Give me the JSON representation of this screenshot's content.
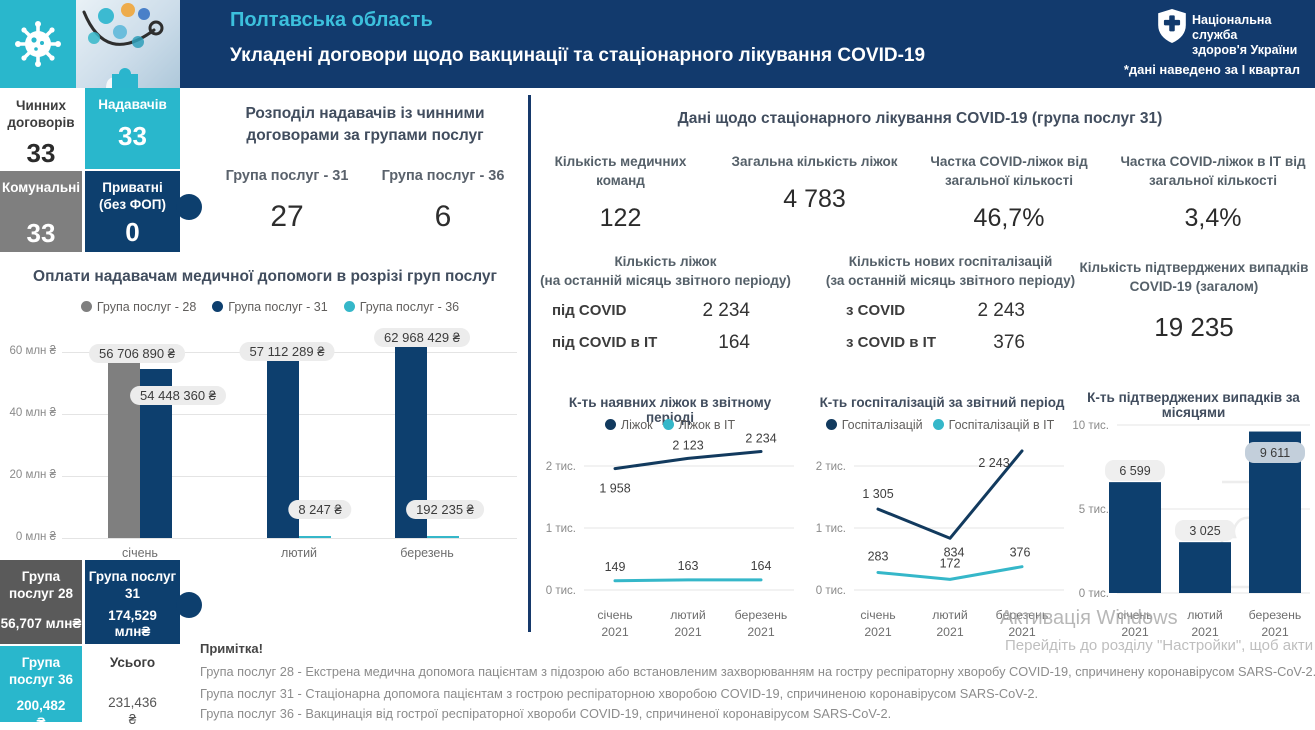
{
  "header": {
    "region": "Полтавська область",
    "subtitle": "Укладені договори щодо вакцинації та стаціонарного лікування COVID-19",
    "org_line1": "Національна служба",
    "org_line2": "здоров'я України",
    "period_note": "*дані наведено за І квартал"
  },
  "colors": {
    "navy": "#123a6d",
    "cyan": "#29b7cc",
    "gray": "#7f7f7f",
    "box_navy": "#0d3f6e",
    "bar_navy": "#0d3f6e",
    "line_navy": "#123a5e",
    "series_cyan": "#35b7c9"
  },
  "summary": {
    "contracts_label": "Чинних договорів",
    "contracts_value": "33",
    "providers_label": "Надавачів",
    "providers_value": "33",
    "municipal_label": "Комунальні",
    "municipal_value": "33",
    "private_label": "Приватні (без ФОП)",
    "private_value": "0"
  },
  "distribution": {
    "title": "Розподіл надавачів із чинними договорами за групами послуг",
    "group31_label": "Група послуг - 31",
    "group31_value": "27",
    "group36_label": "Група послуг - 36",
    "group36_value": "6"
  },
  "totals": {
    "g28_label": "Група послуг 28",
    "g28_value": "56,707 млн₴",
    "g31_label": "Група послуг 31",
    "g31_value": "174,529 млн₴",
    "g36_label": "Група послуг 36",
    "g36_value": "200,482",
    "g36_suffix": "₴",
    "total_label": "Усього",
    "total_value": "231,436",
    "total_suffix": "₴"
  },
  "inpatient": {
    "title": "Дані щодо стаціонарного лікування COVID-19 (група послуг 31)",
    "stats": [
      {
        "label": "Кількість медичних команд",
        "value": "122"
      },
      {
        "label": "Загальна кількість ліжок",
        "value": "4 783"
      },
      {
        "label": "Частка COVID-ліжок від загальної кількості",
        "value": "46,7%"
      },
      {
        "label": "Частка COVID-ліжок в ІТ від загальної кількості",
        "value": "3,4%"
      }
    ],
    "beds": {
      "title1": "Кількість ліжок",
      "title2": "(на останній місяць звітного періоду)",
      "rows": [
        {
          "label": "під COVID",
          "value": "2 234"
        },
        {
          "label": "під COVID в ІТ",
          "value": "164"
        }
      ]
    },
    "hospitalizations": {
      "title1": "Кількість нових госпіталізацій",
      "title2": "(за останній місяць звітного періоду)",
      "rows": [
        {
          "label": "з COVID",
          "value": "2 243"
        },
        {
          "label": "з COVID в ІТ",
          "value": "376"
        }
      ]
    },
    "confirmed": {
      "label1": "Кількість підтверджених випадків",
      "label2": "COVID-19 (загалом)",
      "value": "19 235"
    }
  },
  "notes": {
    "title": "Примітка!",
    "lines": [
      "Група послуг 28 - Екстрена медична допомога пацієнтам з підозрою або встановленим захворюванням на гостру респіраторну хворобу COVID-19, спричинену коронавірусом SARS-CoV-2.",
      "Група послуг 31 - Стаціонарна допомога пацієнтам з гострою респіраторною хворобою COVID-19, спричиненою коронавірусом SARS-CoV-2.",
      "Група послуг 36 - Вакцинація від гострої респіраторної хвороби COVID-19, спричиненої коронавірусом SARS-CoV-2."
    ]
  },
  "watermark": {
    "line1": "Активація Windows",
    "line2": "Перейдіть до розділу \"Настройки\", щоб акти"
  },
  "chart_data": [
    {
      "type": "bar",
      "title": "Оплати надавачам медичної допомоги в розрізі груп послуг",
      "legend": [
        "Група послуг - 28",
        "Група послуг - 31",
        "Група послуг - 36"
      ],
      "legend_colors": [
        "#7f7f7f",
        "#0d3f6e",
        "#35b7c9"
      ],
      "categories": [
        "січень",
        "лютий",
        "березень"
      ],
      "series": [
        {
          "name": "Група послуг - 28",
          "values": [
            56706890,
            null,
            null
          ]
        },
        {
          "name": "Група послуг - 31",
          "values": [
            54448360,
            57112289,
            62968429
          ]
        },
        {
          "name": "Група послуг - 36",
          "values": [
            null,
            8247,
            192235
          ]
        }
      ],
      "bars": [
        56706890,
        54448360,
        57112289,
        8247,
        62968429,
        192235
      ],
      "bar_series_index": [
        0,
        1,
        1,
        2,
        1,
        2
      ],
      "bar_labels": [
        "56 706 890 ₴",
        "54 448 360 ₴",
        "57 112 289 ₴",
        "8 247 ₴",
        "62 968 429 ₴",
        "192 235 ₴"
      ],
      "yticks": [
        "0 млн ₴",
        "20 млн ₴",
        "40 млн ₴",
        "60 млн ₴"
      ],
      "ylim": [
        0,
        65000000
      ]
    },
    {
      "type": "line",
      "title": "К-ть наявних ліжок в звітному періоді",
      "categories": [
        "січень",
        "лютий",
        "березень"
      ],
      "year": "2021",
      "yticks": [
        "0 тис.",
        "1 тис.",
        "2 тис."
      ],
      "ylim": [
        0,
        2400
      ],
      "series": [
        {
          "name": "Ліжок",
          "color": "#123a5e",
          "values": [
            1958,
            2123,
            2234
          ],
          "labels": [
            "1 958",
            "2 123",
            "2 234"
          ]
        },
        {
          "name": "Ліжок в ІТ",
          "color": "#35b7c9",
          "values": [
            149,
            163,
            164
          ],
          "labels": [
            "149",
            "163",
            "164"
          ]
        }
      ]
    },
    {
      "type": "line",
      "title": "К-ть госпіталізацій за звітний період",
      "categories": [
        "січень",
        "лютий",
        "березень"
      ],
      "year": "2021",
      "yticks": [
        "0 тис.",
        "1 тис.",
        "2 тис."
      ],
      "ylim": [
        0,
        2400
      ],
      "series": [
        {
          "name": "Госпіталізацій",
          "color": "#123a5e",
          "values": [
            1305,
            834,
            2243
          ],
          "labels": [
            "1 305",
            "834",
            "2 243"
          ]
        },
        {
          "name": "Госпіталізацій в ІТ",
          "color": "#35b7c9",
          "values": [
            283,
            172,
            376
          ],
          "labels": [
            "283",
            "172",
            "376"
          ]
        }
      ]
    },
    {
      "type": "bar",
      "title": "К-ть підтверджених випадків за місяцями",
      "categories": [
        "січень",
        "лютий",
        "березень"
      ],
      "year": "2021",
      "yticks": [
        "0 тис.",
        "5 тис.",
        "10 тис."
      ],
      "ylim": [
        0,
        10000
      ],
      "values": [
        6599,
        3025,
        9611
      ],
      "labels": [
        "6 599",
        "3 025",
        "9 611"
      ],
      "bar_color": "#0d3f6e"
    }
  ]
}
